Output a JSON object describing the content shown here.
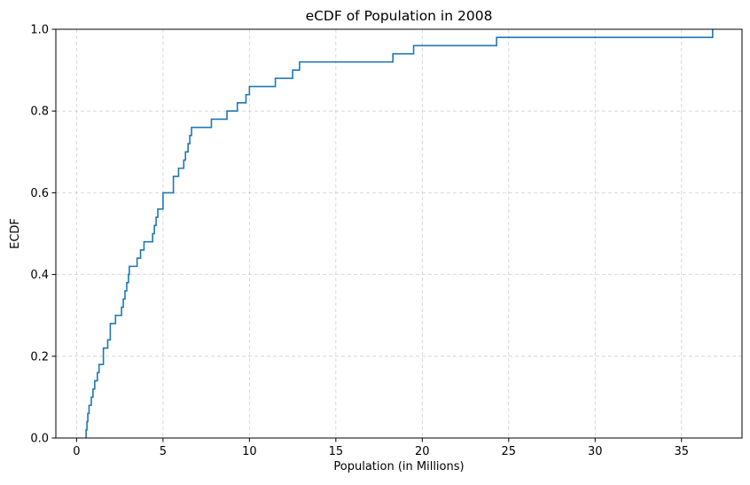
{
  "chart_data": {
    "type": "line",
    "step": "post",
    "title": "eCDF of Population in 2008",
    "xlabel": "Population (in Millions)",
    "ylabel": "ECDF",
    "xlim": [
      -1.2,
      38.5
    ],
    "ylim": [
      0,
      1.0
    ],
    "grid": true,
    "x_ticks": [
      0,
      5,
      10,
      15,
      20,
      25,
      30,
      35
    ],
    "y_ticks": [
      0.0,
      0.2,
      0.4,
      0.6,
      0.8,
      1.0
    ],
    "x_tick_labels": [
      "0",
      "5",
      "10",
      "15",
      "20",
      "25",
      "30",
      "35"
    ],
    "y_tick_labels": [
      "0.0",
      "0.2",
      "0.4",
      "0.6",
      "0.8",
      "1.0"
    ],
    "series": [
      {
        "color": "#1f77b4",
        "x": [
          0.55,
          0.6,
          0.65,
          0.72,
          0.85,
          0.95,
          1.05,
          1.2,
          1.3,
          1.55,
          1.8,
          1.95,
          2.25,
          2.6,
          2.7,
          2.8,
          2.9,
          3.0,
          3.05,
          3.5,
          3.7,
          3.9,
          4.4,
          4.5,
          4.6,
          4.7,
          5.0,
          5.6,
          5.9,
          6.2,
          6.3,
          6.45,
          6.55,
          6.6,
          6.65,
          7.8,
          8.7,
          9.3,
          9.8,
          10.0,
          11.5,
          12.5,
          12.9,
          18.3,
          19.5,
          24.3,
          36.8
        ],
        "y": [
          0.02,
          0.04,
          0.06,
          0.08,
          0.1,
          0.12,
          0.14,
          0.16,
          0.18,
          0.22,
          0.24,
          0.28,
          0.3,
          0.32,
          0.34,
          0.36,
          0.38,
          0.4,
          0.42,
          0.44,
          0.46,
          0.48,
          0.5,
          0.52,
          0.54,
          0.56,
          0.6,
          0.64,
          0.66,
          0.68,
          0.7,
          0.72,
          0.74,
          0.74,
          0.76,
          0.78,
          0.8,
          0.82,
          0.84,
          0.86,
          0.88,
          0.9,
          0.92,
          0.94,
          0.96,
          0.98,
          1.0
        ]
      }
    ]
  }
}
